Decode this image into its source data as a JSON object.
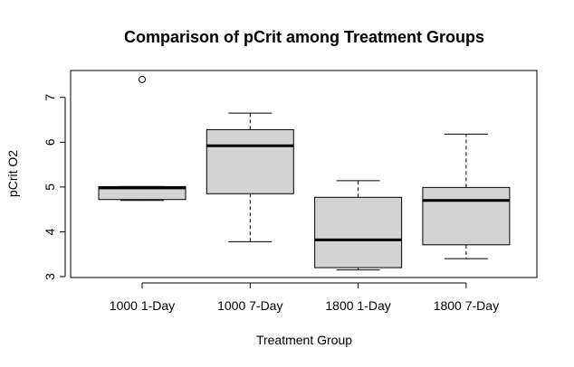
{
  "chart_data": {
    "type": "box",
    "title": "Comparison of pCrit among Treatment Groups",
    "xlabel": "Treatment Group",
    "ylabel": "pCrit O2",
    "categories": [
      "1000 1-Day",
      "1000 7-Day",
      "1800 1-Day",
      "1800 7-Day"
    ],
    "yticks": [
      "3",
      "4",
      "5",
      "6",
      "7"
    ],
    "ylim": [
      2.98,
      7.6
    ],
    "grid": false,
    "box_fill": "#d3d3d3",
    "boxes": [
      {
        "category": "1000 1-Day",
        "whisker_low": 4.7,
        "q1": 4.72,
        "median": 4.98,
        "q3": 5.01,
        "whisker_high": 5.01,
        "outliers": [
          7.4
        ]
      },
      {
        "category": "1000 7-Day",
        "whisker_low": 3.78,
        "q1": 4.85,
        "median": 5.92,
        "q3": 6.28,
        "whisker_high": 6.65,
        "outliers": []
      },
      {
        "category": "1800 1-Day",
        "whisker_low": 3.15,
        "q1": 3.2,
        "median": 3.82,
        "q3": 4.77,
        "whisker_high": 5.14,
        "outliers": []
      },
      {
        "category": "1800 7-Day",
        "whisker_low": 3.4,
        "q1": 3.71,
        "median": 4.7,
        "q3": 4.99,
        "whisker_high": 6.18,
        "outliers": []
      }
    ]
  }
}
